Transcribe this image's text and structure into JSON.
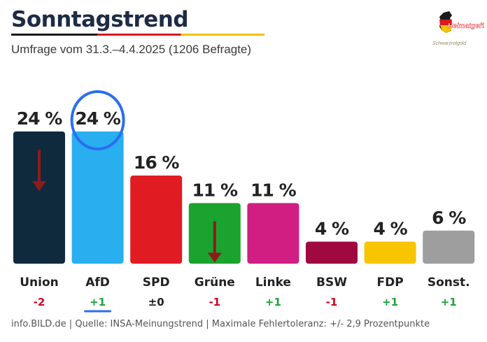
{
  "header": {
    "title": "Sonntagstrend",
    "subtitle": "Umfrage vom 31.3.–4.4.2025 (1206 Befragte)"
  },
  "logo": {
    "text": "Heimatgefühl",
    "subtext": "Schwarzrotgold"
  },
  "footer": {
    "source": "info.BILD.de | Quelle: INSA-Meinungstrend | Maximale Fehlertoleranz: +/- 2,9 Prozentpunkte"
  },
  "colors": {
    "positive": "#1fa23a",
    "negative": "#d0021b",
    "neutral": "#222222",
    "highlight": "#2a6ef0",
    "arrow": "#8e1b1b"
  },
  "chart_data": {
    "type": "bar",
    "categories": [
      "Union",
      "AfD",
      "SPD",
      "Grüne",
      "Linke",
      "BSW",
      "FDP",
      "Sonst."
    ],
    "values": [
      24,
      24,
      16,
      11,
      11,
      4,
      4,
      6
    ],
    "value_labels": [
      "24 %",
      "24 %",
      "16 %",
      "11 %",
      "11 %",
      "4 %",
      "4 %",
      "6 %"
    ],
    "changes": [
      "-2",
      "+1",
      "±0",
      "-1",
      "+1",
      "-1",
      "+1",
      "+1"
    ],
    "colors": [
      "#0f2a3d",
      "#29aef0",
      "#e01b22",
      "#1aa32f",
      "#d01e82",
      "#a0093f",
      "#f7c600",
      "#9e9e9e"
    ],
    "ylim": [
      0,
      24
    ],
    "highlight": "AfD",
    "down_arrows": [
      "Union",
      "Grüne"
    ]
  }
}
